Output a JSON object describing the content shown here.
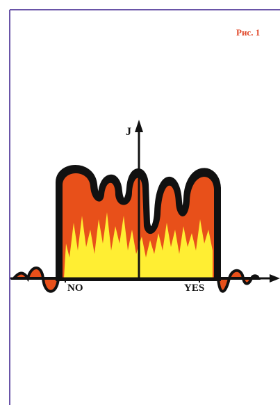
{
  "figure_label": "Рис. 1",
  "y_axis_label": "J",
  "x_labels": {
    "left": "NO",
    "right": "YES"
  }
}
